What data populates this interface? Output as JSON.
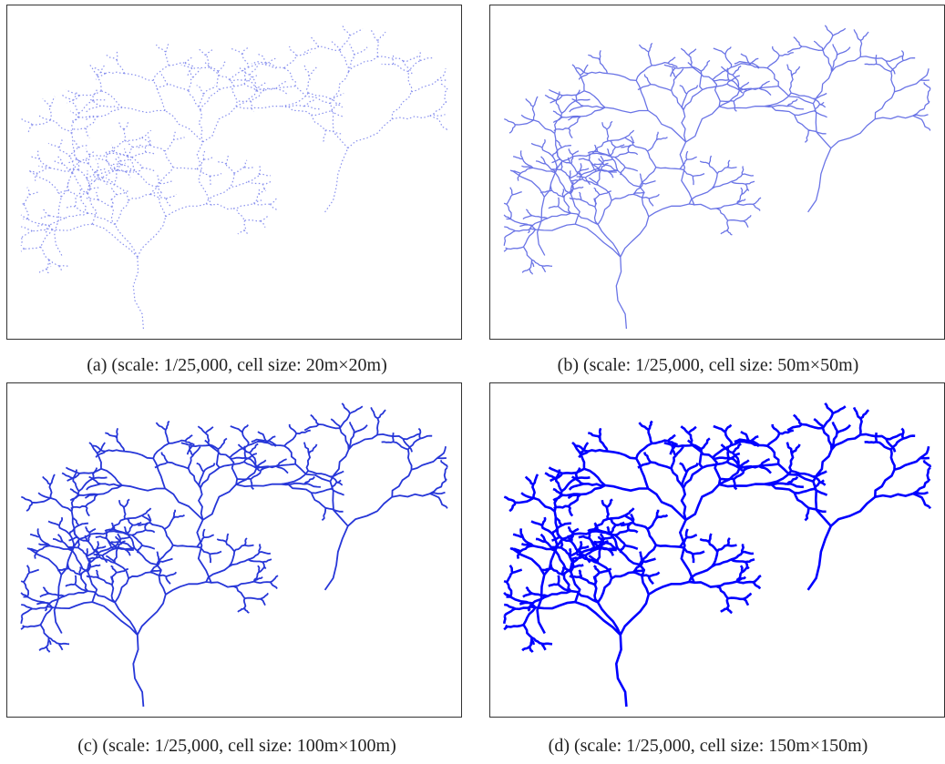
{
  "panels": [
    {
      "caption": "(a) (scale: 1/25,000, cell size: 20m×20m)"
    },
    {
      "caption": "(b) (scale: 1/25,000, cell size: 50m×50m)"
    },
    {
      "caption": "(c) (scale: 1/25,000, cell size: 100m×100m)"
    },
    {
      "caption": "(d) (scale: 1/25,000, cell size: 150m×150m)"
    }
  ]
}
